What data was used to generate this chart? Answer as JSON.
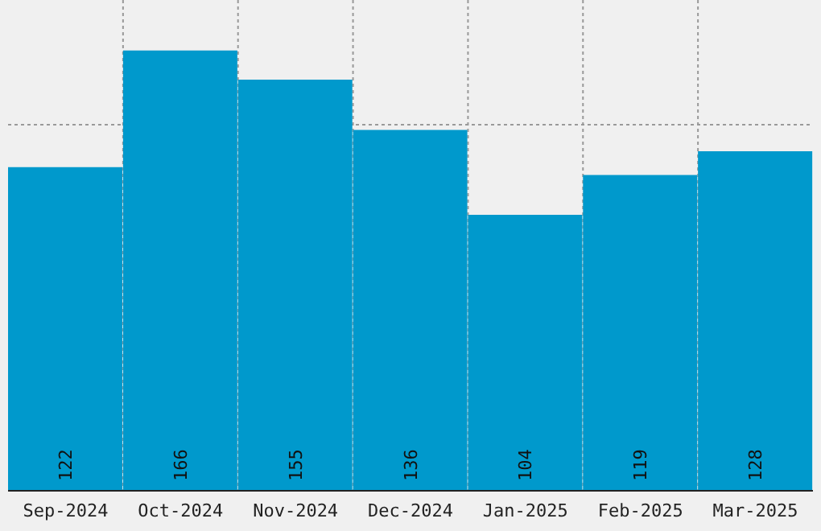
{
  "chart_data": {
    "type": "bar",
    "categories": [
      "Sep-2024",
      "Oct-2024",
      "Nov-2024",
      "Dec-2024",
      "Jan-2025",
      "Feb-2025",
      "Mar-2025"
    ],
    "values": [
      122,
      166,
      155,
      136,
      104,
      119,
      128
    ],
    "color": "#0099cc",
    "ylim": [
      0,
      185
    ],
    "yticks": [
      {
        "value": 46,
        "label": null
      },
      {
        "value": 92,
        "label": null
      },
      {
        "value": 138,
        "label": null
      }
    ],
    "tick_labels": "x",
    "grid": true,
    "data_labels": true
  }
}
